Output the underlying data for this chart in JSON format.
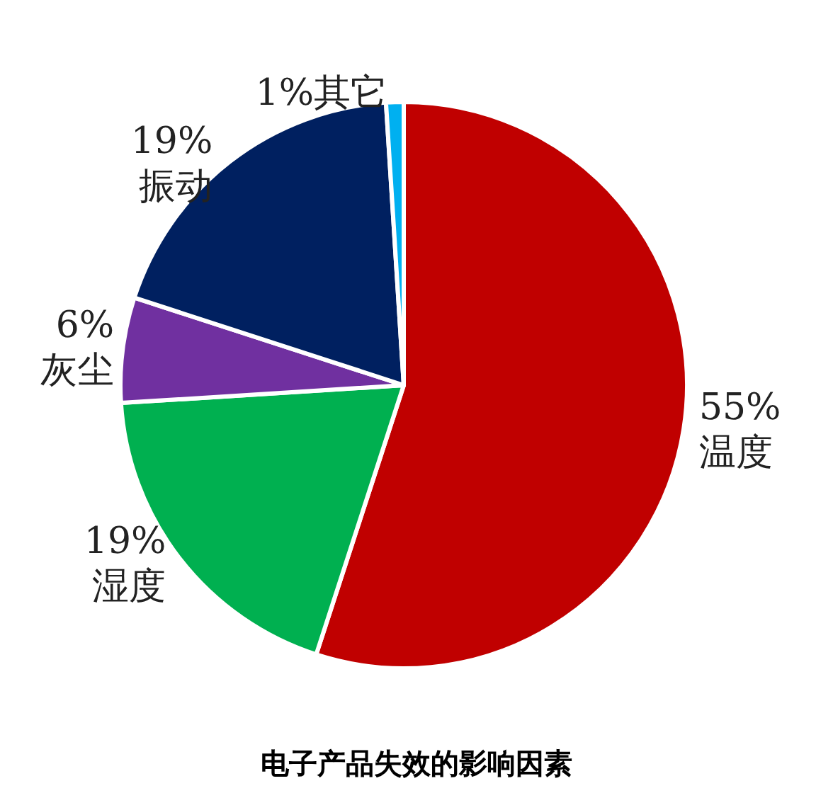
{
  "chart_data": {
    "type": "pie",
    "title": "电子产品失效的影响因素",
    "categories": [
      "温度",
      "湿度",
      "灰尘",
      "振动",
      "其它"
    ],
    "values": [
      55,
      19,
      6,
      19,
      1
    ],
    "value_labels": [
      "55%",
      "19%",
      "6%",
      "19%",
      "1%"
    ],
    "colors": [
      "#c00000",
      "#00b050",
      "#7030a0",
      "#002060",
      "#00b0f0"
    ],
    "legend": false
  }
}
